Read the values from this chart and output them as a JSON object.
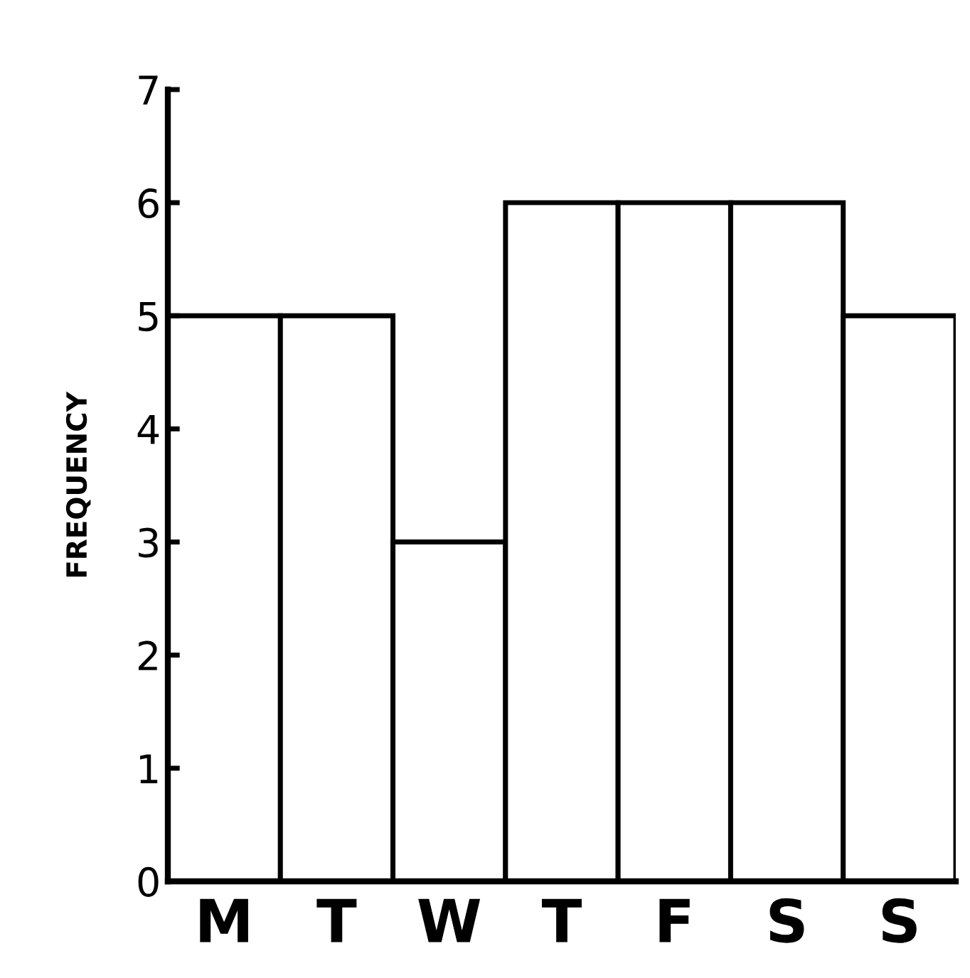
{
  "chart_data": {
    "type": "bar",
    "ylabel": "FREQUENCY",
    "categories": [
      "M",
      "T",
      "W",
      "T",
      "F",
      "S",
      "S"
    ],
    "values": [
      5,
      5,
      3,
      6,
      6,
      6,
      5
    ],
    "color": "#ffffff",
    "ylim": [
      0,
      7
    ],
    "yticks": [
      0,
      1,
      2,
      3,
      4,
      5,
      6,
      7
    ],
    "grid": false,
    "legend": false
  }
}
